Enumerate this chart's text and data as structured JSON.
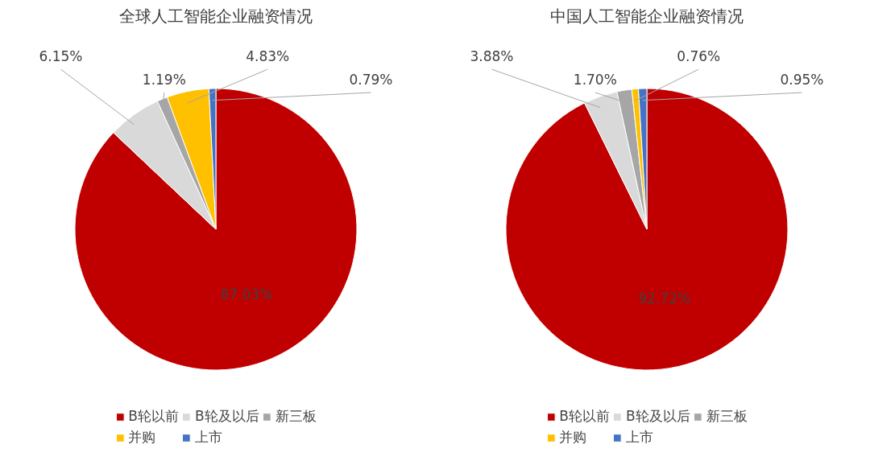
{
  "chart_data": [
    {
      "type": "pie",
      "title": "全球人工智能企业融资情况",
      "categories": [
        "B轮以前",
        "B轮及以后",
        "新三板",
        "并购",
        "上市"
      ],
      "values": [
        87.03,
        6.15,
        1.19,
        4.83,
        0.79
      ],
      "value_labels": [
        "87.03%",
        "6.15%",
        "1.19%",
        "4.83%",
        "0.79%"
      ],
      "colors": [
        "#c00000",
        "#d9d9d9",
        "#a6a6a6",
        "#ffc000",
        "#4472c4"
      ],
      "legend": "bottom"
    },
    {
      "type": "pie",
      "title": "中国人工智能企业融资情况",
      "categories": [
        "B轮以前",
        "B轮及以后",
        "新三板",
        "并购",
        "上市"
      ],
      "values": [
        92.72,
        3.88,
        1.7,
        0.76,
        0.95
      ],
      "value_labels": [
        "92.72%",
        "3.88%",
        "1.70%",
        "0.76%",
        "0.95%"
      ],
      "colors": [
        "#c00000",
        "#d9d9d9",
        "#a6a6a6",
        "#ffc000",
        "#4472c4"
      ],
      "legend": "bottom"
    }
  ]
}
